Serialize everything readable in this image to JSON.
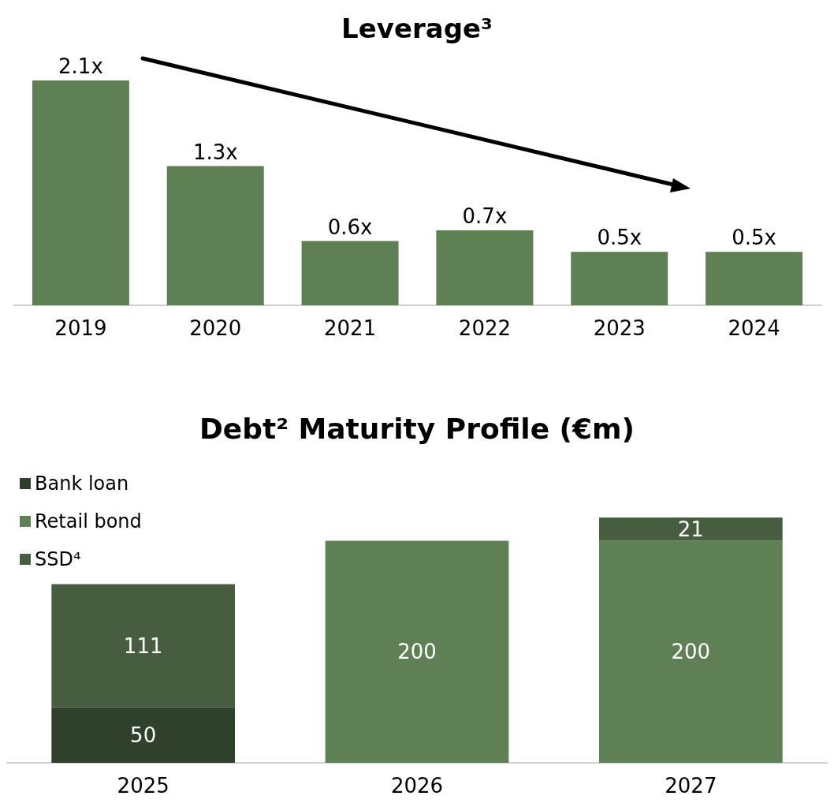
{
  "chart_data": [
    {
      "type": "bar",
      "title": "Leverage³",
      "categories": [
        "2019",
        "2020",
        "2021",
        "2022",
        "2023",
        "2024"
      ],
      "values": [
        2.1,
        1.3,
        0.6,
        0.7,
        0.5,
        0.5
      ],
      "value_labels": [
        "2.1x",
        "1.3x",
        "0.6x",
        "0.7x",
        "0.5x",
        "0.5x"
      ],
      "color": "#5f7f55",
      "legend": false,
      "tick_labels": "x"
    },
    {
      "type": "bar",
      "title": "Debt² Maturity Profile (€m)",
      "categories": [
        "2025",
        "2026",
        "2027"
      ],
      "stacked": true,
      "data_labels": true,
      "legend": "top left",
      "tick_labels": "x",
      "series": [
        {
          "name": "Bank loan",
          "color": "#2f402b",
          "values": [
            50,
            null,
            null
          ]
        },
        {
          "name": "Retail bond",
          "color": "#5f7f55",
          "values": [
            null,
            200,
            200
          ]
        },
        {
          "name": "SSD⁴",
          "color": "#465d3f",
          "values": [
            111,
            null,
            21
          ]
        }
      ]
    }
  ]
}
